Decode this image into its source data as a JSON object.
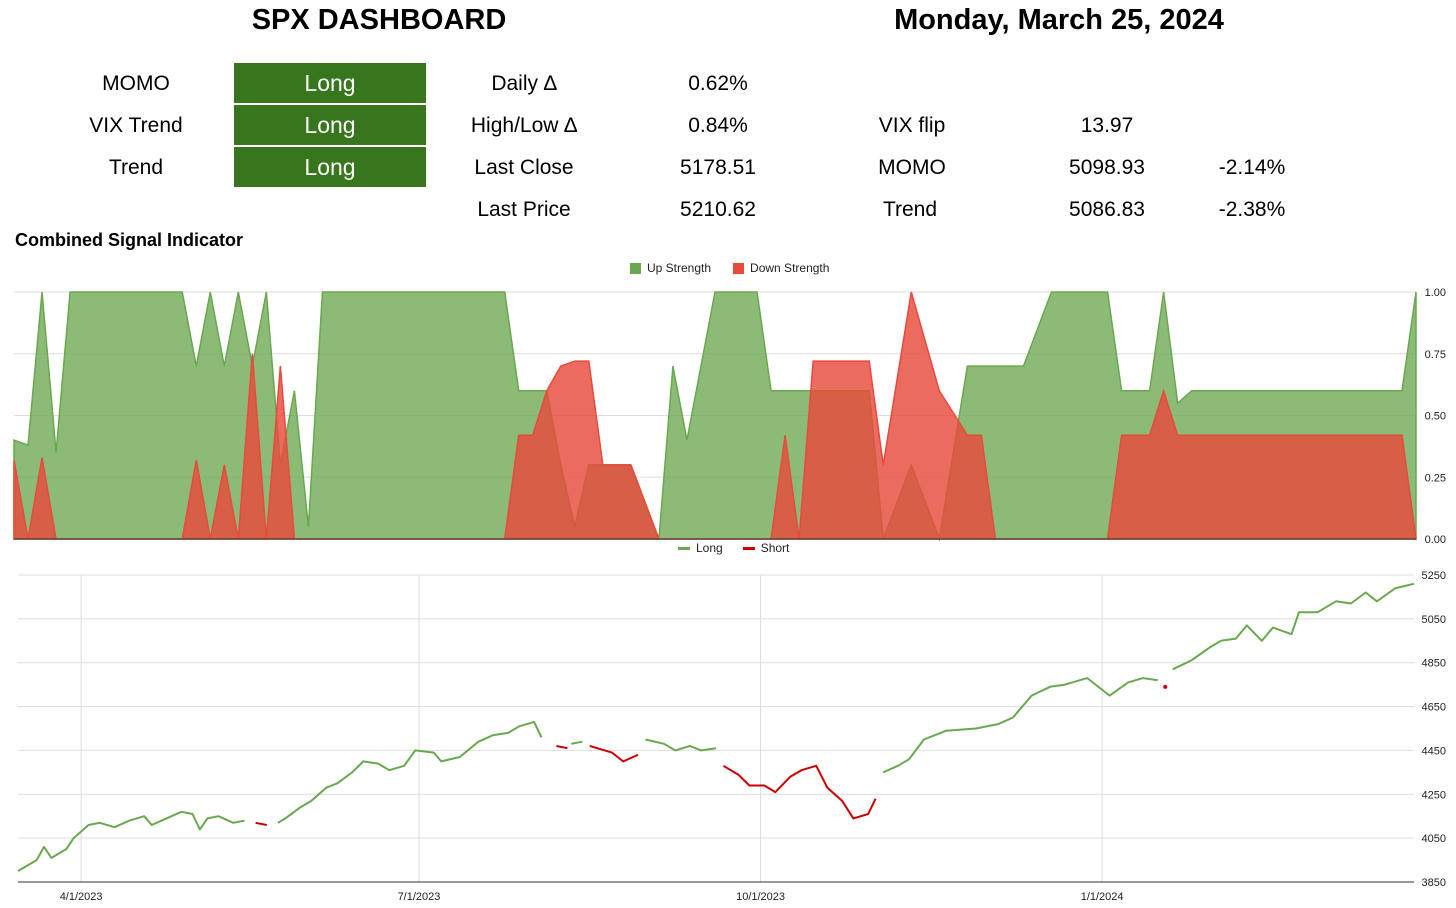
{
  "header": {
    "title": "SPX DASHBOARD",
    "date": "Monday, March 25, 2024"
  },
  "signals": [
    {
      "label": "MOMO",
      "value": "Long"
    },
    {
      "label": "VIX Trend",
      "value": "Long"
    },
    {
      "label": "Trend",
      "value": "Long"
    }
  ],
  "stats": [
    {
      "label": "Daily ∆",
      "value": "0.62%"
    },
    {
      "label": "High/Low ∆",
      "value": "0.84%"
    },
    {
      "label": "Last Close",
      "value": "5178.51"
    },
    {
      "label": "Last Price",
      "value": "5210.62"
    }
  ],
  "levels": [
    {
      "label": "VIX flip",
      "value": "13.97",
      "pct": ""
    },
    {
      "label": "MOMO",
      "value": "5098.93",
      "pct": "-2.14%"
    },
    {
      "label": "Trend",
      "value": "5086.83",
      "pct": "-2.38%"
    }
  ],
  "colors": {
    "signal_bg": "#38761d",
    "up": "#6aa84f",
    "down": "#e84a3c",
    "long_line": "#6aa84f",
    "short_line": "#cc0000"
  },
  "chart_data": [
    {
      "type": "area",
      "title": "Combined Signal Indicator",
      "series": [
        {
          "name": "Up Strength",
          "x": [
            0,
            1,
            2,
            3,
            4,
            5,
            6,
            8,
            9,
            10,
            12,
            13,
            14,
            15,
            16,
            17,
            18,
            19,
            20,
            21,
            22,
            24,
            26,
            27,
            28,
            30,
            31,
            32,
            34,
            35,
            36,
            37,
            38,
            39,
            40,
            41,
            42,
            44,
            46,
            47,
            48,
            50,
            52,
            53,
            54,
            55,
            56,
            57,
            58,
            60,
            61,
            62,
            64,
            66,
            68,
            69,
            70,
            71,
            72,
            74,
            75,
            76,
            77,
            78,
            79,
            80,
            81,
            82,
            83,
            84,
            85,
            86,
            87,
            88,
            90,
            92,
            93,
            94,
            96,
            98,
            99,
            100
          ],
          "values": [
            0.4,
            0.38,
            1.0,
            0.35,
            1.0,
            1.0,
            1.0,
            1.0,
            1.0,
            1.0,
            1.0,
            0.7,
            1.0,
            0.7,
            1.0,
            0.7,
            1.0,
            0.3,
            0.6,
            0.05,
            1.0,
            1.0,
            1.0,
            1.0,
            1.0,
            1.0,
            1.0,
            1.0,
            1.0,
            1.0,
            0.6,
            0.6,
            0.6,
            0.3,
            0.05,
            0.3,
            0.3,
            0.3,
            0.0,
            0.7,
            0.4,
            1.0,
            1.0,
            1.0,
            0.6,
            0.6,
            0.6,
            0.6,
            0.6,
            0.6,
            0.6,
            0.0,
            0.3,
            0.0,
            0.7,
            0.7,
            0.7,
            0.7,
            0.7,
            1.0,
            1.0,
            1.0,
            1.0,
            1.0,
            0.6,
            0.6,
            0.6,
            1.0,
            0.55,
            0.6,
            0.6,
            0.6,
            0.6,
            0.6,
            0.6,
            0.6,
            0.6,
            0.6,
            0.6,
            0.6,
            0.6,
            1.0
          ]
        },
        {
          "name": "Down Strength",
          "x": [
            0,
            1,
            2,
            3,
            4,
            5,
            6,
            8,
            9,
            10,
            12,
            13,
            14,
            15,
            16,
            17,
            18,
            19,
            20,
            21,
            22,
            24,
            26,
            27,
            28,
            30,
            31,
            32,
            34,
            35,
            36,
            37,
            38,
            39,
            40,
            41,
            42,
            44,
            46,
            47,
            48,
            50,
            52,
            53,
            54,
            55,
            56,
            57,
            58,
            60,
            61,
            62,
            64,
            66,
            68,
            69,
            70,
            71,
            72,
            74,
            75,
            76,
            77,
            78,
            79,
            80,
            81,
            82,
            83,
            84,
            85,
            86,
            87,
            88,
            90,
            92,
            93,
            94,
            96,
            98,
            99,
            100
          ],
          "values": [
            0.32,
            0.0,
            0.33,
            0.0,
            0.0,
            0.0,
            0.0,
            0.0,
            0.0,
            0.0,
            0.0,
            0.32,
            0.0,
            0.3,
            0.0,
            0.75,
            0.0,
            0.7,
            0.0,
            0.0,
            0.0,
            0.0,
            0.0,
            0.0,
            0.0,
            0.0,
            0.0,
            0.0,
            0.0,
            0.0,
            0.42,
            0.42,
            0.6,
            0.7,
            0.72,
            0.72,
            0.3,
            0.3,
            0.0,
            0.0,
            0.0,
            0.0,
            0.0,
            0.0,
            0.0,
            0.42,
            0.0,
            0.72,
            0.72,
            0.72,
            0.72,
            0.3,
            1.0,
            0.6,
            0.42,
            0.42,
            0.0,
            0.0,
            0.0,
            0.0,
            0.0,
            0.0,
            0.0,
            0.0,
            0.42,
            0.42,
            0.42,
            0.6,
            0.42,
            0.42,
            0.42,
            0.42,
            0.42,
            0.42,
            0.42,
            0.42,
            0.42,
            0.42,
            0.42,
            0.42,
            0.42,
            0.0
          ]
        }
      ],
      "ylim": [
        0,
        1
      ],
      "yticks": [
        "1.00",
        "0.75",
        "0.50",
        "0.25",
        "0.00"
      ],
      "legend": "top-center"
    },
    {
      "type": "line",
      "series": [
        {
          "name": "Long"
        },
        {
          "name": "Short"
        }
      ],
      "points": [
        [
          "2023-03-15",
          3900,
          "L"
        ],
        [
          "2023-03-20",
          3950,
          "L"
        ],
        [
          "2023-03-22",
          4010,
          "L"
        ],
        [
          "2023-03-24",
          3960,
          "L"
        ],
        [
          "2023-03-28",
          4000,
          "L"
        ],
        [
          "2023-03-30",
          4050,
          "L"
        ],
        [
          "2023-04-03",
          4110,
          "L"
        ],
        [
          "2023-04-06",
          4120,
          "L"
        ],
        [
          "2023-04-10",
          4100,
          "L"
        ],
        [
          "2023-04-14",
          4130,
          "L"
        ],
        [
          "2023-04-18",
          4150,
          "L"
        ],
        [
          "2023-04-20",
          4110,
          "L"
        ],
        [
          "2023-04-24",
          4140,
          "L"
        ],
        [
          "2023-04-28",
          4170,
          "L"
        ],
        [
          "2023-05-01",
          4160,
          "L"
        ],
        [
          "2023-05-03",
          4090,
          "L"
        ],
        [
          "2023-05-05",
          4140,
          "L"
        ],
        [
          "2023-05-08",
          4150,
          "L"
        ],
        [
          "2023-05-12",
          4120,
          "L"
        ],
        [
          "2023-05-15",
          4130,
          "L"
        ],
        [
          "2023-05-18",
          4120,
          "S"
        ],
        [
          "2023-05-21",
          4110,
          "S"
        ],
        [
          "2023-05-24",
          4120,
          "L"
        ],
        [
          "2023-05-26",
          4140,
          "L"
        ],
        [
          "2023-05-30",
          4190,
          "L"
        ],
        [
          "2023-06-02",
          4220,
          "L"
        ],
        [
          "2023-06-06",
          4280,
          "L"
        ],
        [
          "2023-06-09",
          4300,
          "L"
        ],
        [
          "2023-06-13",
          4350,
          "L"
        ],
        [
          "2023-06-16",
          4400,
          "L"
        ],
        [
          "2023-06-20",
          4390,
          "L"
        ],
        [
          "2023-06-23",
          4360,
          "L"
        ],
        [
          "2023-06-27",
          4380,
          "L"
        ],
        [
          "2023-06-30",
          4450,
          "L"
        ],
        [
          "2023-07-05",
          4440,
          "L"
        ],
        [
          "2023-07-07",
          4400,
          "L"
        ],
        [
          "2023-07-12",
          4420,
          "L"
        ],
        [
          "2023-07-17",
          4490,
          "L"
        ],
        [
          "2023-07-21",
          4520,
          "L"
        ],
        [
          "2023-07-25",
          4530,
          "L"
        ],
        [
          "2023-07-28",
          4560,
          "L"
        ],
        [
          "2023-08-01",
          4580,
          "L"
        ],
        [
          "2023-08-03",
          4510,
          "L"
        ],
        [
          "2023-08-07",
          4470,
          "S"
        ],
        [
          "2023-08-10",
          4460,
          "S"
        ],
        [
          "2023-08-11",
          4480,
          "L"
        ],
        [
          "2023-08-14",
          4490,
          "L"
        ],
        [
          "2023-08-16",
          4470,
          "S"
        ],
        [
          "2023-08-18",
          4460,
          "S"
        ],
        [
          "2023-08-22",
          4440,
          "S"
        ],
        [
          "2023-08-25",
          4400,
          "S"
        ],
        [
          "2023-08-29",
          4430,
          "S"
        ],
        [
          "2023-08-31",
          4500,
          "L"
        ],
        [
          "2023-09-05",
          4480,
          "L"
        ],
        [
          "2023-09-08",
          4450,
          "L"
        ],
        [
          "2023-09-12",
          4470,
          "L"
        ],
        [
          "2023-09-15",
          4450,
          "L"
        ],
        [
          "2023-09-19",
          4460,
          "L"
        ],
        [
          "2023-09-21",
          4380,
          "S"
        ],
        [
          "2023-09-25",
          4340,
          "S"
        ],
        [
          "2023-09-28",
          4290,
          "S"
        ],
        [
          "2023-10-02",
          4290,
          "S"
        ],
        [
          "2023-10-05",
          4260,
          "S"
        ],
        [
          "2023-10-09",
          4330,
          "S"
        ],
        [
          "2023-10-12",
          4360,
          "S"
        ],
        [
          "2023-10-16",
          4380,
          "S"
        ],
        [
          "2023-10-19",
          4280,
          "S"
        ],
        [
          "2023-10-23",
          4220,
          "S"
        ],
        [
          "2023-10-26",
          4140,
          "S"
        ],
        [
          "2023-10-30",
          4160,
          "S"
        ],
        [
          "2023-11-01",
          4230,
          "S"
        ],
        [
          "2023-11-03",
          4350,
          "L"
        ],
        [
          "2023-11-07",
          4380,
          "L"
        ],
        [
          "2023-11-10",
          4410,
          "L"
        ],
        [
          "2023-11-14",
          4500,
          "L"
        ],
        [
          "2023-11-20",
          4540,
          "L"
        ],
        [
          "2023-11-28",
          4550,
          "L"
        ],
        [
          "2023-12-04",
          4570,
          "L"
        ],
        [
          "2023-12-08",
          4600,
          "L"
        ],
        [
          "2023-12-13",
          4700,
          "L"
        ],
        [
          "2023-12-18",
          4740,
          "L"
        ],
        [
          "2023-12-22",
          4750,
          "L"
        ],
        [
          "2023-12-28",
          4780,
          "L"
        ],
        [
          "2024-01-03",
          4700,
          "L"
        ],
        [
          "2024-01-08",
          4760,
          "L"
        ],
        [
          "2024-01-12",
          4780,
          "L"
        ],
        [
          "2024-01-16",
          4770,
          "L"
        ],
        [
          "2024-01-18",
          4740,
          "S"
        ],
        [
          "2024-01-20",
          4820,
          "L"
        ],
        [
          "2024-01-25",
          4860,
          "L"
        ],
        [
          "2024-01-30",
          4920,
          "L"
        ],
        [
          "2024-02-02",
          4950,
          "L"
        ],
        [
          "2024-02-06",
          4960,
          "L"
        ],
        [
          "2024-02-09",
          5020,
          "L"
        ],
        [
          "2024-02-13",
          4950,
          "L"
        ],
        [
          "2024-02-16",
          5010,
          "L"
        ],
        [
          "2024-02-21",
          4980,
          "L"
        ],
        [
          "2024-02-23",
          5080,
          "L"
        ],
        [
          "2024-02-28",
          5080,
          "L"
        ],
        [
          "2024-03-04",
          5130,
          "L"
        ],
        [
          "2024-03-08",
          5120,
          "L"
        ],
        [
          "2024-03-12",
          5170,
          "L"
        ],
        [
          "2024-03-15",
          5130,
          "L"
        ],
        [
          "2024-03-20",
          5190,
          "L"
        ],
        [
          "2024-03-25",
          5210,
          "L"
        ]
      ],
      "ylim": [
        3850,
        5250
      ],
      "yticks": [
        "5250",
        "5050",
        "4850",
        "4650",
        "4450",
        "4250",
        "4050",
        "3850"
      ],
      "xticks": [
        "4/1/2023",
        "7/1/2023",
        "10/1/2023",
        "1/1/2024"
      ],
      "legend": "top-center",
      "grid": true
    }
  ]
}
